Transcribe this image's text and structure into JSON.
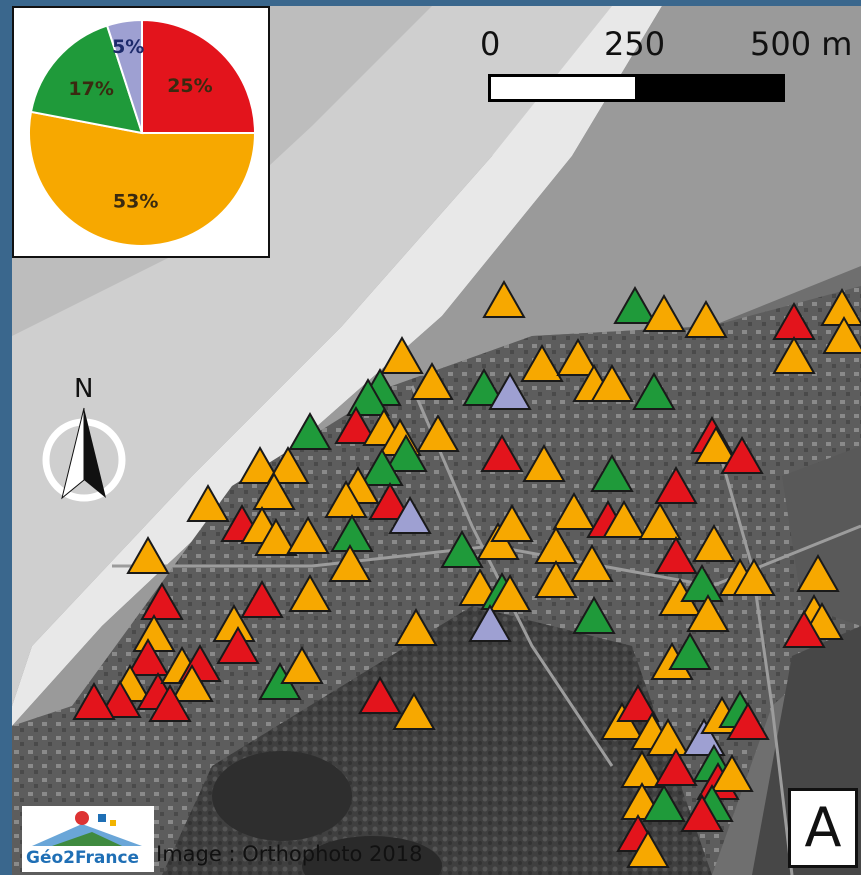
{
  "pie": {
    "slices": [
      {
        "label": "25%",
        "value": 25,
        "color": "#e3141c"
      },
      {
        "label": "53%",
        "value": 53,
        "color": "#f7a800"
      },
      {
        "label": "17%",
        "value": 17,
        "color": "#1f9a3a"
      },
      {
        "label": "5%",
        "value": 5,
        "color": "#9ea0d2"
      }
    ]
  },
  "scale_bar": {
    "label_0": "0",
    "label_250": "250",
    "label_500": "500 m"
  },
  "north_arrow": {
    "letter": "N",
    "icon": "north-arrow-icon"
  },
  "panel": {
    "letter": "A"
  },
  "logo": {
    "text": "Géo2France",
    "icon": "geo2france-logo-icon"
  },
  "credit": {
    "text": "Image : Orthophoto 2018"
  },
  "colors": {
    "red": "#e3141c",
    "orange": "#f7a800",
    "green": "#1f9a3a",
    "purple": "#9ea0d2"
  },
  "map_overlay": {
    "marker_icon": "triangle-marker-icon",
    "counts": {
      "orange": 53,
      "red": 25,
      "green": 17,
      "purple": 5
    }
  }
}
